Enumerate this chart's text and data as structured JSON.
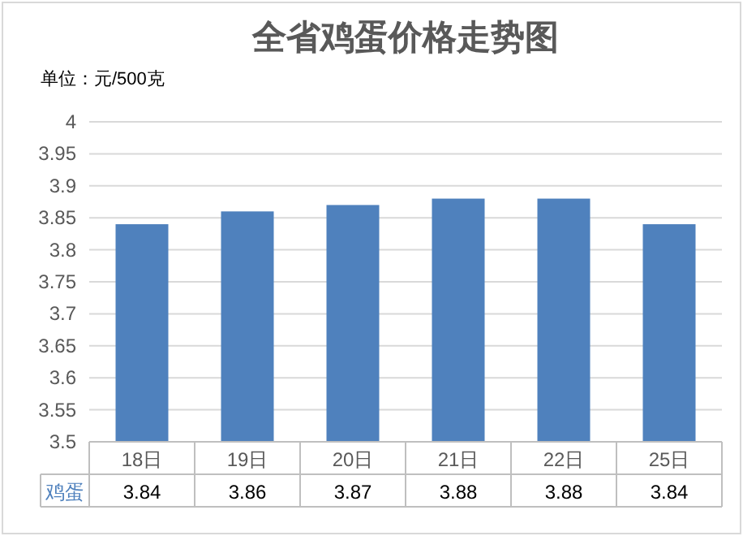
{
  "chart_data": {
    "type": "bar",
    "title": "全省鸡蛋价格走势图",
    "annotations": [
      "单位：元/500克"
    ],
    "categories": [
      "18日",
      "19日",
      "20日",
      "21日",
      "22日",
      "25日"
    ],
    "series": [
      {
        "name": "鸡蛋",
        "color": "#4f81bd",
        "values": [
          3.84,
          3.86,
          3.87,
          3.88,
          3.88,
          3.84
        ]
      }
    ],
    "ylim": [
      3.5,
      4
    ],
    "yticks": [
      3.5,
      3.55,
      3.6,
      3.65,
      3.7,
      3.75,
      3.8,
      3.85,
      3.9,
      3.95,
      4
    ],
    "grid": "y",
    "data_labels": true
  }
}
